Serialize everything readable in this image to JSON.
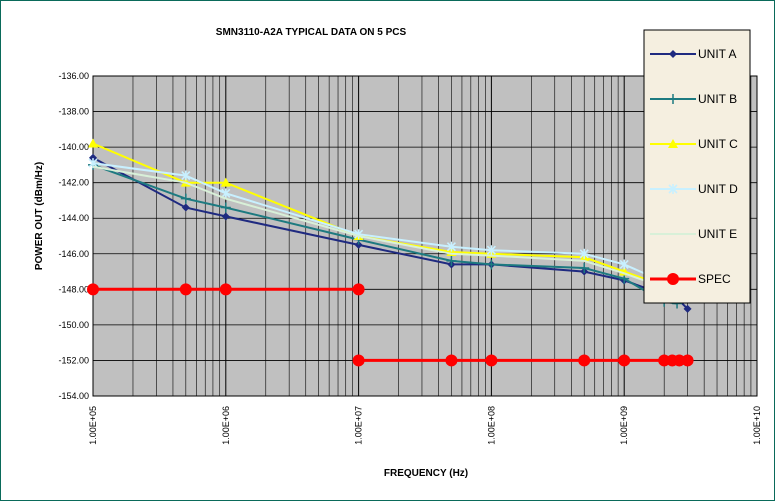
{
  "chart_data": {
    "type": "line",
    "title": "SMN3110-A2A TYPICAL DATA ON 5 PCS",
    "xlabel": "FREQUENCY (Hz)",
    "ylabel": "POWER OUT (dBm/Hz)",
    "xscale": "log",
    "xlim": [
      100000,
      10000000000
    ],
    "ylim": [
      -154,
      -136
    ],
    "x_ticks": [
      100000,
      1000000,
      10000000,
      100000000,
      1000000000,
      10000000000
    ],
    "x_tick_labels": [
      "1.00E+05",
      "1.00E+06",
      "1.00E+07",
      "1.00E+08",
      "1.00E+09",
      "1.00E+10"
    ],
    "y_ticks": [
      -136,
      -138,
      -140,
      -142,
      -144,
      -146,
      -148,
      -150,
      -152,
      -154
    ],
    "y_tick_labels": [
      "-136.00",
      "-138.00",
      "-140.00",
      "-142.00",
      "-144.00",
      "-146.00",
      "-148.00",
      "-150.00",
      "-152.00",
      "-154.00"
    ],
    "grid": true,
    "plot_background": "#c0c0c0",
    "legend_position": "right",
    "series": [
      {
        "name": "UNIT A",
        "color": "#1f2a80",
        "marker": "diamond",
        "x": [
          100000,
          500000,
          1000000,
          10000000,
          50000000,
          100000000,
          500000000,
          1000000000,
          2000000000,
          2500000000,
          3000000000
        ],
        "y": [
          -140.6,
          -143.4,
          -143.9,
          -145.5,
          -146.6,
          -146.6,
          -147.0,
          -147.5,
          -148.3,
          -148.5,
          -149.1
        ]
      },
      {
        "name": "UNIT B",
        "color": "#1d7a80",
        "marker": "plus",
        "x": [
          100000,
          500000,
          1000000,
          10000000,
          50000000,
          100000000,
          500000000,
          1000000000,
          2000000000,
          2500000000,
          3000000000
        ],
        "y": [
          -141.0,
          -142.9,
          -143.4,
          -145.2,
          -146.4,
          -146.6,
          -146.8,
          -147.4,
          -148.7,
          -148.8,
          -148.3
        ]
      },
      {
        "name": "UNIT C",
        "color": "#ffff00",
        "marker": "triangle",
        "x": [
          100000,
          500000,
          1000000,
          10000000,
          50000000,
          100000000,
          500000000,
          1000000000,
          2000000000,
          2500000000,
          3000000000
        ],
        "y": [
          -139.8,
          -142.0,
          -142.0,
          -145.0,
          -145.9,
          -146.0,
          -146.2,
          -147.0,
          -147.8,
          -148.0,
          -148.2
        ]
      },
      {
        "name": "UNIT D",
        "color": "#c8f0ff",
        "marker": "star",
        "x": [
          100000,
          500000,
          1000000,
          10000000,
          50000000,
          100000000,
          500000000,
          1000000000,
          2000000000,
          2500000000,
          3000000000
        ],
        "y": [
          -140.9,
          -141.6,
          -142.6,
          -144.9,
          -145.6,
          -145.8,
          -146.0,
          -146.6,
          -147.6,
          -148.2,
          -148.5
        ]
      },
      {
        "name": "UNIT E",
        "color": "#d8f0d8",
        "marker": "none",
        "x": [
          100000,
          500000,
          1000000,
          10000000,
          50000000,
          100000000,
          500000000,
          1000000000,
          2000000000,
          2500000000,
          3000000000
        ],
        "y": [
          -141.1,
          -142.0,
          -142.9,
          -145.0,
          -146.0,
          -146.1,
          -146.4,
          -147.1,
          -147.9,
          -148.1,
          -148.4
        ]
      },
      {
        "name": "SPEC",
        "color": "#ff0000",
        "marker": "circle",
        "segments": [
          {
            "x": [
              100000,
              500000,
              1000000,
              10000000
            ],
            "y": [
              -148,
              -148,
              -148,
              -148
            ]
          },
          {
            "x": [
              10000000,
              50000000,
              100000000,
              500000000,
              1000000000,
              2000000000,
              2300000000,
              2600000000,
              3000000000
            ],
            "y": [
              -152,
              -152,
              -152,
              -152,
              -152,
              -152,
              -152,
              -152,
              -152
            ]
          }
        ]
      }
    ]
  }
}
